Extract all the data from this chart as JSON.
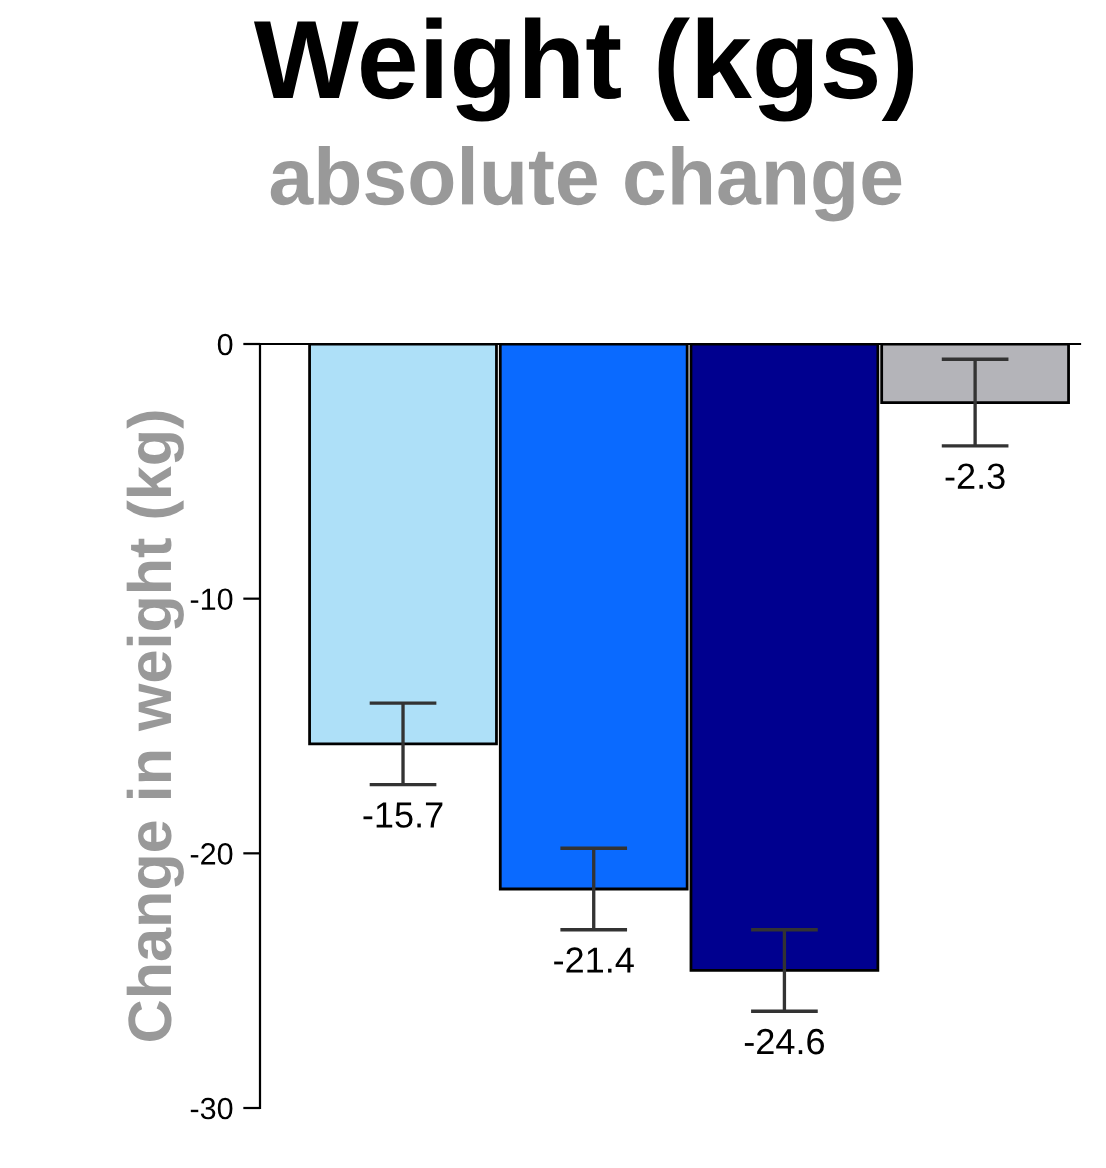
{
  "chart_data": {
    "type": "bar",
    "title": "Weight (kgs)",
    "subtitle": "absolute change",
    "ylabel": "Change in weight (kg)",
    "categories": [
      null,
      null,
      null,
      null
    ],
    "values": [
      -15.7,
      -21.4,
      -24.6,
      -2.3
    ],
    "errors": [
      1.6,
      1.6,
      1.6,
      1.7
    ],
    "colors": [
      "#aee0f8",
      "#0a6aff",
      "#00008f",
      "#b4b4b9"
    ],
    "ylim": [
      -30,
      0
    ],
    "yticks": [
      -30,
      -20,
      -10,
      0
    ],
    "grid": false,
    "data_labels": true
  }
}
